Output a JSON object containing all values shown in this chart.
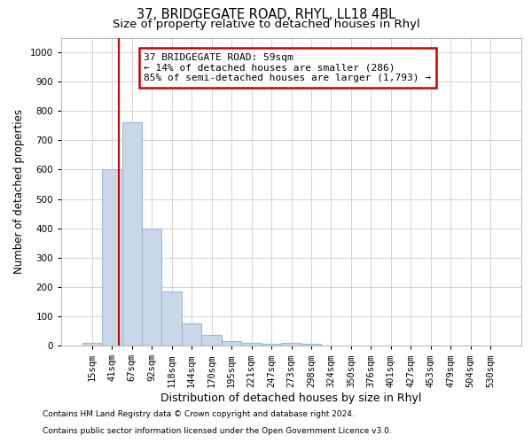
{
  "title": "37, BRIDGEGATE ROAD, RHYL, LL18 4BL",
  "subtitle": "Size of property relative to detached houses in Rhyl",
  "xlabel": "Distribution of detached houses by size in Rhyl",
  "ylabel": "Number of detached properties",
  "footer_line1": "Contains HM Land Registry data © Crown copyright and database right 2024.",
  "footer_line2": "Contains public sector information licensed under the Open Government Licence v3.0.",
  "bin_labels": [
    "15sqm",
    "41sqm",
    "67sqm",
    "92sqm",
    "118sqm",
    "144sqm",
    "170sqm",
    "195sqm",
    "221sqm",
    "247sqm",
    "273sqm",
    "298sqm",
    "324sqm",
    "350sqm",
    "376sqm",
    "401sqm",
    "427sqm",
    "453sqm",
    "479sqm",
    "504sqm",
    "530sqm"
  ],
  "bar_values": [
    10,
    600,
    760,
    400,
    185,
    75,
    35,
    15,
    10,
    5,
    10,
    5,
    0,
    0,
    0,
    0,
    0,
    0,
    0,
    0,
    0
  ],
  "bar_color": "#c8d8e8",
  "bar_edgecolor": "#a0b8cc",
  "bar_linewidth": 0.8,
  "vline_x": 1.35,
  "vline_color": "#cc0000",
  "vline_linewidth": 1.5,
  "annotation_line1": "37 BRIDGEGATE ROAD: 59sqm",
  "annotation_line2": "← 14% of detached houses are smaller (286)",
  "annotation_line3": "85% of semi-detached houses are larger (1,793) →",
  "box_edgecolor": "#cc0000",
  "box_facecolor": "#ffffff",
  "ylim": [
    0,
    1050
  ],
  "yticks": [
    0,
    100,
    200,
    300,
    400,
    500,
    600,
    700,
    800,
    900,
    1000
  ],
  "grid_color": "#cccccc",
  "background_color": "#ffffff",
  "title_fontsize": 10.5,
  "subtitle_fontsize": 9.5,
  "ylabel_fontsize": 8.5,
  "xlabel_fontsize": 9,
  "tick_fontsize": 7.5,
  "annotation_fontsize": 8,
  "footer_fontsize": 6.5
}
